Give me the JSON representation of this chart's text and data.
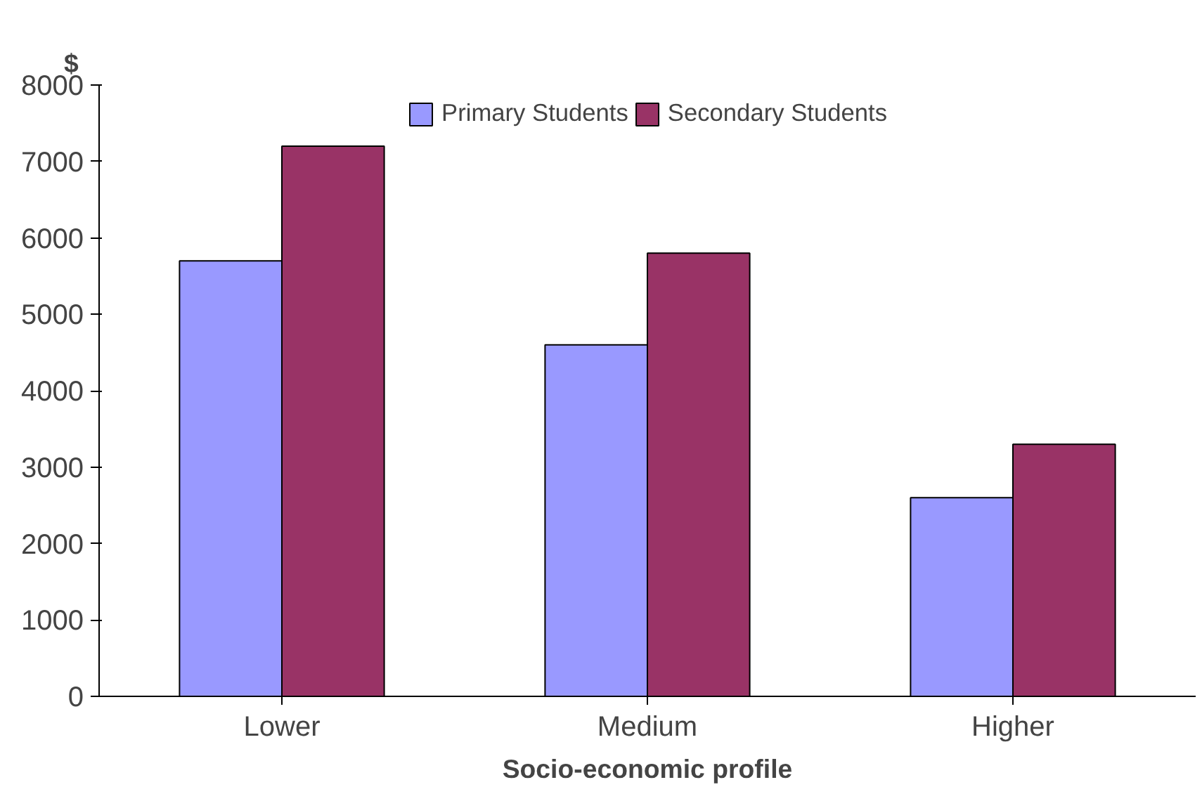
{
  "chart_data": {
    "type": "bar",
    "xlabel": "Socio-economic profile",
    "ylabel": "$",
    "categories": [
      "Lower",
      "Medium",
      "Higher"
    ],
    "series": [
      {
        "name": "Primary Students",
        "color": "#9999ff",
        "values": [
          5700,
          4600,
          2600
        ]
      },
      {
        "name": "Secondary Students",
        "color": "#993366",
        "values": [
          7200,
          5800,
          3300
        ]
      }
    ],
    "ylim": [
      0,
      8000
    ],
    "yticks": [
      0,
      1000,
      2000,
      3000,
      4000,
      5000,
      6000,
      7000,
      8000
    ],
    "grid": false,
    "legend": "top"
  }
}
